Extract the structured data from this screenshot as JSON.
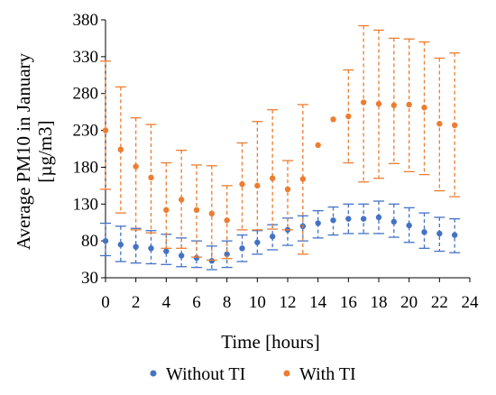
{
  "chart_data": {
    "type": "scatter",
    "title": "",
    "xlabel": "Time [hours]",
    "ylabel_line1": "Average PM10 in January",
    "ylabel_line2": "[µg/m3]",
    "xlim": [
      0,
      24
    ],
    "ylim": [
      30,
      380
    ],
    "x_ticks": [
      0,
      2,
      4,
      6,
      8,
      10,
      12,
      14,
      16,
      18,
      20,
      22,
      24
    ],
    "y_ticks": [
      30,
      80,
      130,
      180,
      230,
      280,
      330,
      380
    ],
    "grid": false,
    "legend_position": "bottom",
    "x": [
      0,
      1,
      2,
      3,
      4,
      5,
      6,
      7,
      8,
      9,
      10,
      11,
      12,
      13,
      14,
      15,
      16,
      17,
      18,
      19,
      20,
      21,
      22,
      23
    ],
    "series": [
      {
        "name": "Without TI",
        "color": "#4472C4",
        "values": [
          80,
          75,
          72,
          70,
          66,
          60,
          57,
          53,
          62,
          70,
          78,
          86,
          95,
          100,
          104,
          108,
          110,
          110,
          112,
          106,
          101,
          92,
          90,
          88
        ],
        "lower": [
          60,
          52,
          50,
          49,
          48,
          45,
          44,
          41,
          44,
          52,
          62,
          68,
          74,
          80,
          84,
          88,
          90,
          90,
          90,
          85,
          78,
          70,
          66,
          64
        ],
        "upper": [
          104,
          100,
          97,
          94,
          89,
          84,
          80,
          73,
          80,
          88,
          94,
          102,
          111,
          114,
          121,
          126,
          130,
          130,
          134,
          130,
          125,
          118,
          112,
          110
        ]
      },
      {
        "name": "With TI",
        "color": "#ED7D31",
        "values": [
          230,
          204,
          181,
          166,
          122,
          136,
          122,
          117,
          108,
          157,
          155,
          165,
          150,
          164,
          210,
          245,
          249,
          268,
          266,
          264,
          265,
          261,
          239,
          237
        ],
        "lower": [
          150,
          118,
          95,
          91,
          70,
          70,
          58,
          54,
          56,
          95,
          95,
          96,
          95,
          62,
          210,
          245,
          186,
          160,
          165,
          185,
          174,
          170,
          148,
          140
        ],
        "upper": [
          324,
          289,
          247,
          238,
          186,
          203,
          183,
          182,
          155,
          213,
          242,
          258,
          189,
          265,
          210,
          245,
          312,
          372,
          366,
          355,
          354,
          350,
          328,
          335
        ]
      }
    ]
  }
}
